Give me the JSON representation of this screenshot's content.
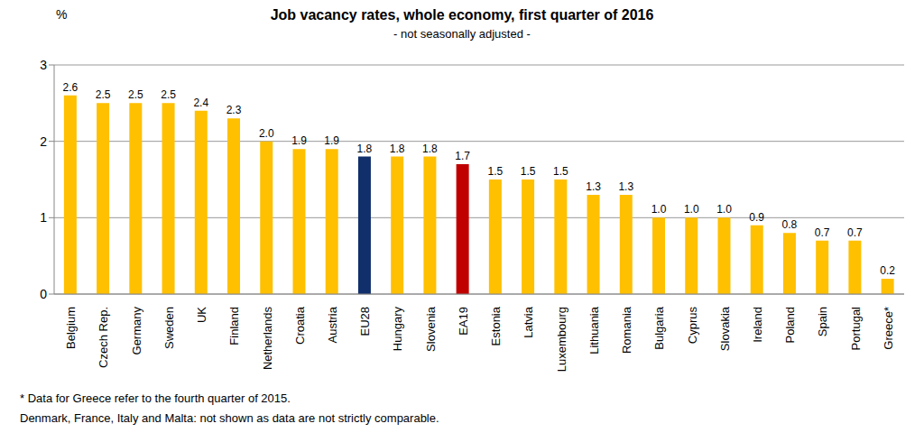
{
  "chart_data": {
    "type": "bar",
    "title": "Job vacancy rates, whole economy, first quarter of 2016",
    "subtitle": "- not seasonally adjusted -",
    "ylabel": "%",
    "categories": [
      "Belgium",
      "Czech Rep.",
      "Germany",
      "Sweden",
      "UK",
      "Finland",
      "Netherlands",
      "Croatia",
      "Austria",
      "EU28",
      "Hungary",
      "Slovenia",
      "EA19",
      "Estonia",
      "Latvia",
      "Luxembourg",
      "Lithuania",
      "Romania",
      "Bulgaria",
      "Cyprus",
      "Slovakia",
      "Ireland",
      "Poland",
      "Spain",
      "Portugal",
      "Greece*"
    ],
    "values": [
      2.6,
      2.5,
      2.5,
      2.5,
      2.4,
      2.3,
      2.0,
      1.9,
      1.9,
      1.8,
      1.8,
      1.8,
      1.7,
      1.5,
      1.5,
      1.5,
      1.3,
      1.3,
      1.0,
      1.0,
      1.0,
      0.9,
      0.8,
      0.7,
      0.7,
      0.2
    ],
    "value_labels": [
      "2.6",
      "2.5",
      "2.5",
      "2.5",
      "2.4",
      "2.3",
      "2.0",
      "1.9",
      "1.9",
      "1.8",
      "1.8",
      "1.8",
      "1.7",
      "1.5",
      "1.5",
      "1.5",
      "1.3",
      "1.3",
      "1.0",
      "1.0",
      "1.0",
      "0.9",
      "0.8",
      "0.7",
      "0.7",
      "0.2"
    ],
    "colors": [
      "#FFC000",
      "#FFC000",
      "#FFC000",
      "#FFC000",
      "#FFC000",
      "#FFC000",
      "#FFC000",
      "#FFC000",
      "#FFC000",
      "#112F6B",
      "#FFC000",
      "#FFC000",
      "#C00000",
      "#FFC000",
      "#FFC000",
      "#FFC000",
      "#FFC000",
      "#FFC000",
      "#FFC000",
      "#FFC000",
      "#FFC000",
      "#FFC000",
      "#FFC000",
      "#FFC000",
      "#FFC000",
      "#FFC000"
    ],
    "ylim": [
      0,
      3
    ],
    "yticks": [
      0,
      1,
      2,
      3
    ],
    "grid": true,
    "data_labels": true,
    "annotations": [
      "* Data for Greece refer to the fourth quarter of 2015.",
      "Denmark, France, Italy and Malta: not shown as data are not strictly comparable."
    ]
  }
}
